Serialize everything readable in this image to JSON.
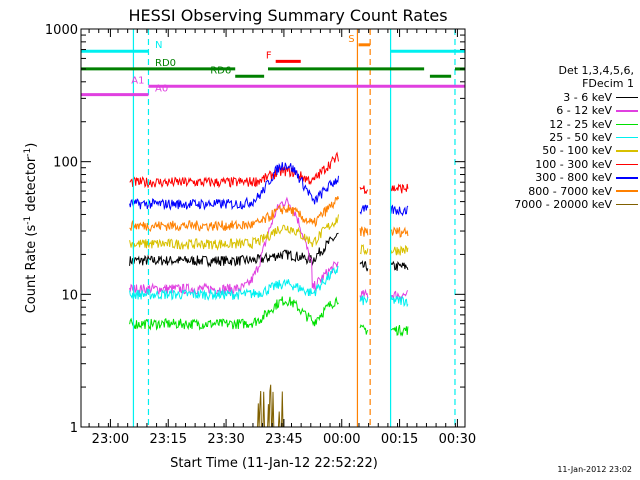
{
  "chart_data": {
    "type": "line",
    "title": "HESSI Observing Summary Count Rates",
    "xlabel": "Start Time (11-Jan-12 22:52:22)",
    "ylabel": "Count Rate (s-1 detector-1)",
    "ylabel_parts": {
      "pre": "Count Rate (s",
      "sup1": "-1",
      "mid": " detector",
      "sup2": "-1",
      "post": ")"
    },
    "y_scale": "log",
    "ylim": [
      1,
      1000
    ],
    "x_range": [
      "22:52:22",
      "00:32:00"
    ],
    "x_range_minutes": [
      0,
      99.6
    ],
    "x_ticks": [
      {
        "label": "23:00",
        "min": 7.63
      },
      {
        "label": "23:15",
        "min": 22.63
      },
      {
        "label": "23:30",
        "min": 37.63
      },
      {
        "label": "23:45",
        "min": 52.63
      },
      {
        "label": "00:00",
        "min": 67.63
      },
      {
        "label": "00:15",
        "min": 82.63
      },
      {
        "label": "00:30",
        "min": 97.63
      }
    ],
    "y_ticks": [
      {
        "label": "1",
        "value": 1
      },
      {
        "label": "10",
        "value": 10
      },
      {
        "label": "100",
        "value": 100
      },
      {
        "label": "1000",
        "value": 1000
      }
    ],
    "legend_header": [
      "Det 1,3,4,5,6,",
      "FDecim 1"
    ],
    "series": [
      {
        "name": "3 - 6 keV",
        "color": "#000000",
        "baseline": 18,
        "bump": 20
      },
      {
        "name": "6 - 12 keV",
        "color": "#e040e0",
        "baseline": 11,
        "bump": 50
      },
      {
        "name": "12 - 25 keV",
        "color": "#00e000",
        "baseline": 6,
        "bump": 9
      },
      {
        "name": "25 - 50 keV",
        "color": "#00f0f0",
        "baseline": 10,
        "bump": 12
      },
      {
        "name": "50 - 100 keV",
        "color": "#d8c000",
        "baseline": 24,
        "bump": 32
      },
      {
        "name": "100 - 300 keV",
        "color": "#ff0000",
        "baseline": 70,
        "bump": 85
      },
      {
        "name": "300 - 800 keV",
        "color": "#0000ff",
        "baseline": 48,
        "bump": 95
      },
      {
        "name": "800 - 7000 keV",
        "color": "#ff8000",
        "baseline": 33,
        "bump": 44
      },
      {
        "name": "7000 - 20000 keV",
        "color": "#806000",
        "baseline": 1,
        "bump": 2
      }
    ],
    "data_gaps": [
      [
        0,
        12.5
      ],
      [
        67.0,
        72.3
      ],
      [
        74.5,
        80.3
      ],
      [
        85.0,
        99.6
      ]
    ],
    "flags": [
      {
        "label": "N",
        "color": "#00f0f0",
        "y": 680,
        "segments": [
          [
            0,
            17.5
          ],
          [
            80.3,
            99.6
          ]
        ]
      },
      {
        "label": "RD0",
        "color": "#008000",
        "y": 500,
        "segments": [
          [
            0,
            40.0
          ],
          [
            48.5,
            89.0
          ],
          [
            97.0,
            99.6
          ]
        ]
      },
      {
        "label": "RD6",
        "color": "#008000",
        "y": 440,
        "segments": [
          [
            40.0,
            47.5
          ],
          [
            90.5,
            96.0
          ]
        ]
      },
      {
        "label": "F",
        "color": "#ff0000",
        "y": 570,
        "segments": [
          [
            50.5,
            57.0
          ]
        ]
      },
      {
        "label": "S",
        "color": "#ff8000",
        "y": 760,
        "segments": [
          [
            72.0,
            75.0
          ]
        ]
      },
      {
        "label": "A0",
        "color": "#e040e0",
        "y": 320,
        "segments": [
          [
            0,
            17.5
          ]
        ]
      },
      {
        "label": "A1",
        "color": "#e040e0",
        "y": 370,
        "segments": [
          [
            17.5,
            99.6
          ]
        ]
      }
    ],
    "vlines": [
      {
        "min": 13.6,
        "color": "#00f0f0",
        "dashed": false
      },
      {
        "min": 17.5,
        "color": "#00f0f0",
        "dashed": true
      },
      {
        "min": 71.7,
        "color": "#ff8000",
        "dashed": false
      },
      {
        "min": 75.0,
        "color": "#ff8000",
        "dashed": true
      },
      {
        "min": 80.3,
        "color": "#00f0f0",
        "dashed": false
      },
      {
        "min": 97.0,
        "color": "#00f0f0",
        "dashed": true
      }
    ],
    "grid": false,
    "legend_position": "right"
  },
  "footer_stamp": "11-Jan-2012 23:02"
}
